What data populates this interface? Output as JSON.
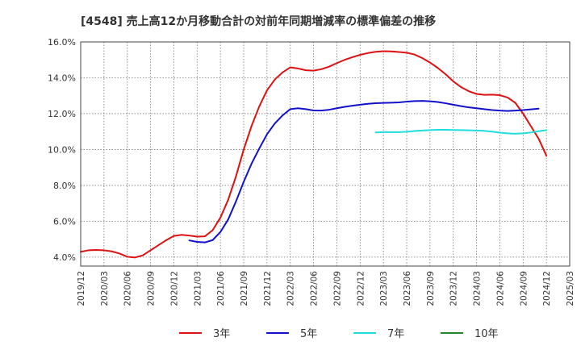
{
  "chart_data": {
    "type": "line",
    "title": "[4548]  売上高12か月移動合計の対前年同期増減率の標準偏差の推移",
    "xlabel": "",
    "ylabel": "",
    "ylim": [
      3.5,
      16.0
    ],
    "yticks": [
      4.0,
      6.0,
      8.0,
      10.0,
      12.0,
      14.0,
      16.0
    ],
    "ytick_labels": [
      "4.0%",
      "6.0%",
      "8.0%",
      "10.0%",
      "12.0%",
      "14.0%",
      "16.0%"
    ],
    "xlim": [
      "2019-12",
      "2025-03"
    ],
    "x_tick_labels": [
      "2019/12",
      "2020/03",
      "2020/06",
      "2020/09",
      "2020/12",
      "2021/03",
      "2021/06",
      "2021/09",
      "2021/12",
      "2022/03",
      "2022/06",
      "2022/09",
      "2022/12",
      "2023/03",
      "2023/06",
      "2023/09",
      "2023/12",
      "2024/03",
      "2024/06",
      "2024/09",
      "2024/12",
      "2025/03"
    ],
    "grid": true,
    "legend_position": "bottom",
    "series": [
      {
        "name": "3年",
        "color": "#dd1111",
        "start": "2019-12",
        "values": [
          4.3,
          4.38,
          4.4,
          4.38,
          4.32,
          4.2,
          4.02,
          3.98,
          4.1,
          4.38,
          4.66,
          4.94,
          5.18,
          5.24,
          5.2,
          5.14,
          5.16,
          5.5,
          6.2,
          7.2,
          8.5,
          10.0,
          11.3,
          12.4,
          13.3,
          13.9,
          14.3,
          14.58,
          14.52,
          14.42,
          14.4,
          14.48,
          14.62,
          14.82,
          15.0,
          15.15,
          15.28,
          15.38,
          15.45,
          15.48,
          15.47,
          15.44,
          15.4,
          15.3,
          15.1,
          14.85,
          14.55,
          14.2,
          13.8,
          13.48,
          13.25,
          13.1,
          13.05,
          13.06,
          13.03,
          12.9,
          12.6,
          12.0,
          11.3,
          10.6,
          9.65
        ]
      },
      {
        "name": "5年",
        "color": "#1111cc",
        "start": "2021-02",
        "values": [
          4.93,
          4.85,
          4.82,
          4.95,
          5.4,
          6.1,
          7.1,
          8.2,
          9.2,
          10.05,
          10.85,
          11.45,
          11.9,
          12.25,
          12.3,
          12.25,
          12.18,
          12.17,
          12.22,
          12.3,
          12.38,
          12.44,
          12.5,
          12.55,
          12.58,
          12.6,
          12.61,
          12.63,
          12.67,
          12.7,
          12.71,
          12.69,
          12.65,
          12.58,
          12.5,
          12.42,
          12.35,
          12.3,
          12.25,
          12.2,
          12.17,
          12.15,
          12.17,
          12.2,
          12.24,
          12.28
        ]
      },
      {
        "name": "7年",
        "color": "#22dddd",
        "start": "2023-02",
        "values": [
          10.95,
          10.97,
          10.97,
          10.97,
          10.99,
          11.03,
          11.06,
          11.08,
          11.1,
          11.1,
          11.09,
          11.08,
          11.07,
          11.06,
          11.04,
          11.0,
          10.94,
          10.9,
          10.88,
          10.9,
          10.95,
          11.02,
          11.08
        ]
      },
      {
        "name": "10年",
        "color": "#228822",
        "start": "2024-12",
        "values": []
      }
    ]
  }
}
